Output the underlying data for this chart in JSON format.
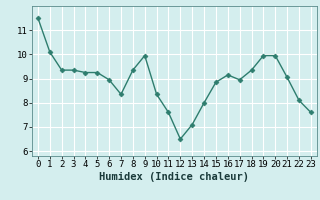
{
  "x": [
    0,
    1,
    2,
    3,
    4,
    5,
    6,
    7,
    8,
    9,
    10,
    11,
    12,
    13,
    14,
    15,
    16,
    17,
    18,
    19,
    20,
    21,
    22,
    23
  ],
  "y": [
    11.5,
    10.1,
    9.35,
    9.35,
    9.25,
    9.25,
    8.95,
    8.35,
    9.35,
    9.95,
    8.35,
    7.6,
    6.5,
    7.1,
    8.0,
    8.85,
    9.15,
    8.95,
    9.35,
    9.95,
    9.95,
    9.05,
    8.1,
    7.6
  ],
  "line_color": "#2e7d6e",
  "marker": "D",
  "marker_size": 2.5,
  "linewidth": 1.0,
  "xlabel": "Humidex (Indice chaleur)",
  "xlim": [
    -0.5,
    23.5
  ],
  "ylim": [
    5.8,
    12.0
  ],
  "yticks": [
    6,
    7,
    8,
    9,
    10,
    11
  ],
  "xticks": [
    0,
    1,
    2,
    3,
    4,
    5,
    6,
    7,
    8,
    9,
    10,
    11,
    12,
    13,
    14,
    15,
    16,
    17,
    18,
    19,
    20,
    21,
    22,
    23
  ],
  "bg_color": "#d4eeee",
  "grid_color": "#ffffff",
  "tick_fontsize": 6.5,
  "xlabel_fontsize": 7.5
}
